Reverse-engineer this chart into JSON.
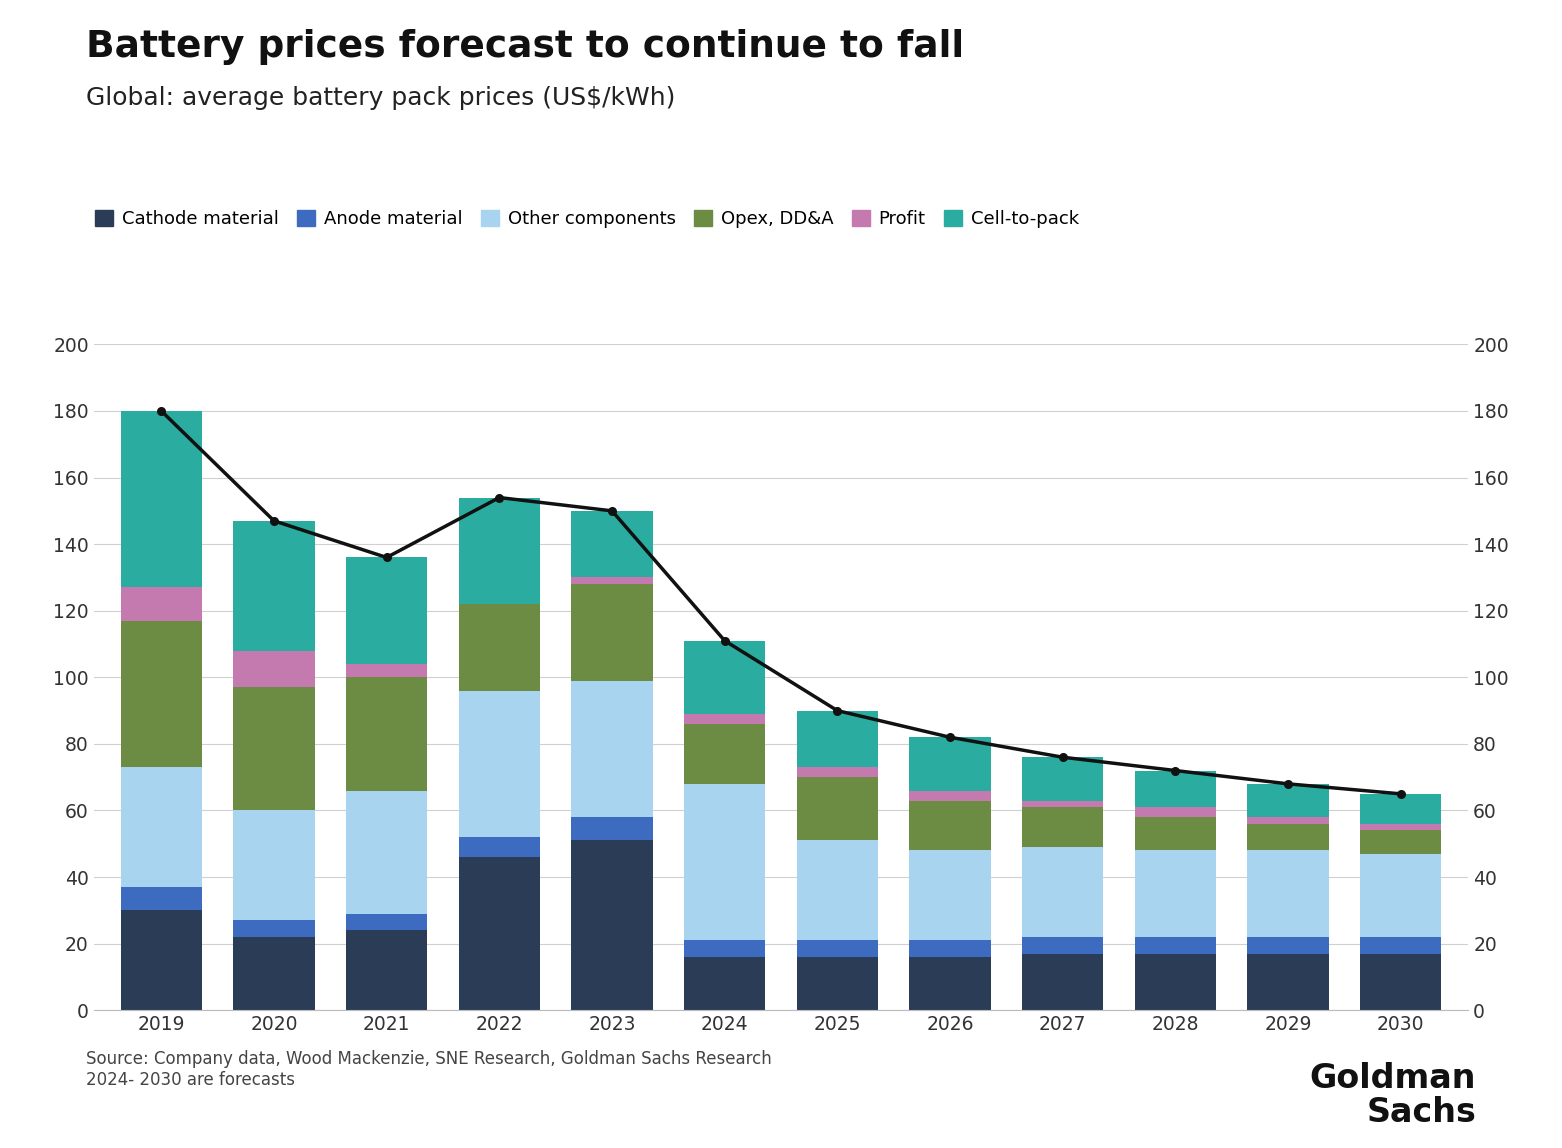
{
  "years": [
    2019,
    2020,
    2021,
    2022,
    2023,
    2024,
    2025,
    2026,
    2027,
    2028,
    2029,
    2030
  ],
  "cathode": [
    30,
    22,
    24,
    46,
    51,
    16,
    16,
    16,
    17,
    17,
    17,
    17
  ],
  "anode": [
    7,
    5,
    5,
    6,
    7,
    5,
    5,
    5,
    5,
    5,
    5,
    5
  ],
  "other_components": [
    36,
    33,
    37,
    44,
    41,
    47,
    30,
    27,
    27,
    26,
    26,
    25
  ],
  "opex_dda": [
    44,
    37,
    34,
    26,
    29,
    18,
    19,
    15,
    12,
    10,
    8,
    7
  ],
  "profit": [
    10,
    11,
    4,
    0,
    2,
    3,
    3,
    3,
    2,
    3,
    2,
    2
  ],
  "cell_to_pack": [
    53,
    39,
    32,
    32,
    20,
    22,
    17,
    16,
    13,
    11,
    10,
    9
  ],
  "line_values": [
    180,
    147,
    136,
    154,
    150,
    111,
    90,
    82,
    76,
    72,
    68,
    65
  ],
  "colors": {
    "cathode": "#2b3d56",
    "anode": "#3d6bbf",
    "other_components": "#a8d4f0",
    "opex_dda": "#6b8c42",
    "profit": "#c47aae",
    "cell_to_pack": "#2aada0"
  },
  "title": "Battery prices forecast to continue to fall",
  "subtitle": "Global: average battery pack prices (US$/kWh)",
  "legend_labels": [
    "Cathode material",
    "Anode material",
    "Other components",
    "Opex, DD&A",
    "Profit",
    "Cell-to-pack"
  ],
  "source_text": "Source: Company data, Wood Mackenzie, SNE Research, Goldman Sachs Research\n2024- 2030 are forecasts",
  "ylim": [
    0,
    200
  ],
  "yticks": [
    0,
    20,
    40,
    60,
    80,
    100,
    120,
    140,
    160,
    180,
    200
  ],
  "background_color": "#ffffff",
  "line_color": "#111111",
  "grid_color": "#d0d0d0"
}
